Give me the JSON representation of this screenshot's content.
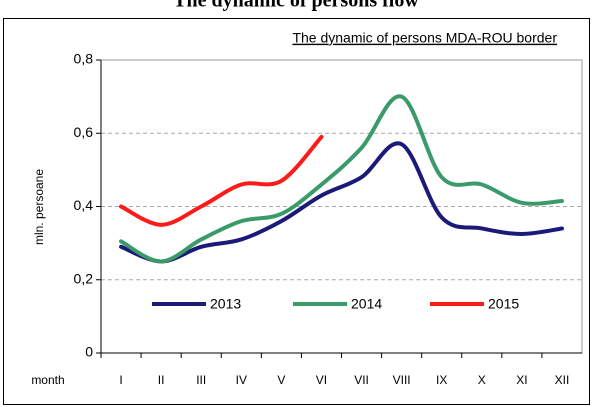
{
  "chart_data": {
    "type": "line",
    "title": "The dynamic of persons flow",
    "subtitle": "The dynamic of persons MDA-ROU border",
    "y_label": "mln. persoane",
    "x_label": "month",
    "categories": [
      "I",
      "II",
      "III",
      "IV",
      "V",
      "VI",
      "VII",
      "VIII",
      "IX",
      "X",
      "XI",
      "XII"
    ],
    "series": [
      {
        "name": "2013",
        "color": "#1c1a78",
        "values": [
          0.29,
          0.25,
          0.29,
          0.31,
          0.36,
          0.43,
          0.48,
          0.57,
          0.37,
          0.34,
          0.325,
          0.34
        ]
      },
      {
        "name": "2014",
        "color": "#3a9a6a",
        "values": [
          0.305,
          0.25,
          0.31,
          0.36,
          0.38,
          0.46,
          0.56,
          0.7,
          0.48,
          0.46,
          0.41,
          0.415
        ]
      },
      {
        "name": "2015",
        "color": "#ff1a1a",
        "values": [
          0.4,
          0.35,
          0.4,
          0.46,
          0.47,
          0.59,
          null,
          null,
          null,
          null,
          null,
          null
        ]
      }
    ],
    "ylim": [
      0,
      0.8
    ],
    "yticks": [
      0,
      {
        "value": 0.2,
        "label": "0,2"
      },
      {
        "value": 0.4,
        "label": "0,4"
      },
      {
        "value": 0.6,
        "label": "0,6"
      },
      {
        "value": 0.8,
        "label": "0,8"
      }
    ],
    "grid": true,
    "legend": "bottom"
  }
}
